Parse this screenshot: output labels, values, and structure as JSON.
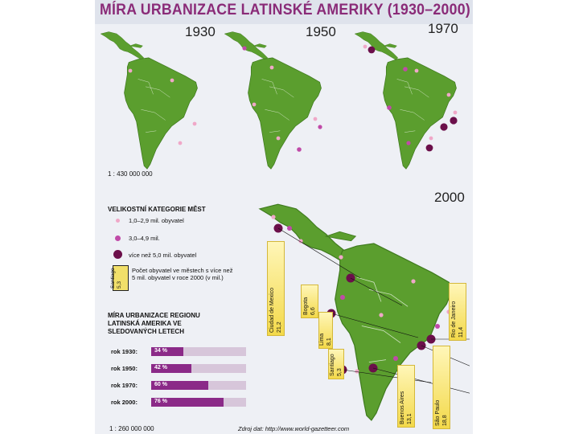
{
  "title": "MÍRA URBANIZACE LATINSKÉ AMERIKY (1930–2000)",
  "years": {
    "y1930": "1930",
    "y1950": "1950",
    "y1970": "1970",
    "y2000": "2000"
  },
  "scale_small": "1 : 430 000 000",
  "scale_large": "1 : 260 000 000",
  "colors": {
    "land": "#5b9e2e",
    "land_dark": "#3f7a1e",
    "small_city": "#f0a8c8",
    "mid_city": "#c04aa8",
    "large_city": "#6b0f4a",
    "bar": "#8b2a88",
    "bar_track": "#d7c6da",
    "gauge": "#f3d94a",
    "title": "#8a2b78"
  },
  "legend": {
    "heading": "VELIKOSTNÍ KATEGORIE MĚST",
    "small": "1,0–2,9 mil. obyvatel",
    "mid": "3,0–4,9 mil.",
    "large": "více než 5,0 mil. obyvatel",
    "gauge_city": "Santiago",
    "gauge_value": "5,3",
    "gauge_text": "Počet obyvatel ve městech s více než 5 mil. obyvatel v roce 2000 (v mil.)"
  },
  "urbanization": {
    "heading": "MÍRA URBANIZACE REGIONU LATINSKÁ AMERIKA VE SLEDOVANÝCH LETECH",
    "rows": [
      {
        "label": "rok 1930:",
        "value": 34,
        "text": "34 %"
      },
      {
        "label": "rok 1950:",
        "value": 42,
        "text": "42 %"
      },
      {
        "label": "rok 1970:",
        "value": 60,
        "text": "60 %"
      },
      {
        "label": "rok 2000:",
        "value": 76,
        "text": "76 %"
      }
    ]
  },
  "cities_2000": [
    {
      "name": "Ciudad de Mexico",
      "value": "21,2"
    },
    {
      "name": "Bogota",
      "value": "6,6"
    },
    {
      "name": "Lima",
      "value": "8,1"
    },
    {
      "name": "Santiago",
      "value": "5,3"
    },
    {
      "name": "Buenos Aires",
      "value": "13,1"
    },
    {
      "name": "São Paulo",
      "value": "18,8"
    },
    {
      "name": "Rio de Janeiro",
      "value": "11,4"
    }
  ],
  "source": "Zdroj dat: http://www.world-gazetteer.com"
}
